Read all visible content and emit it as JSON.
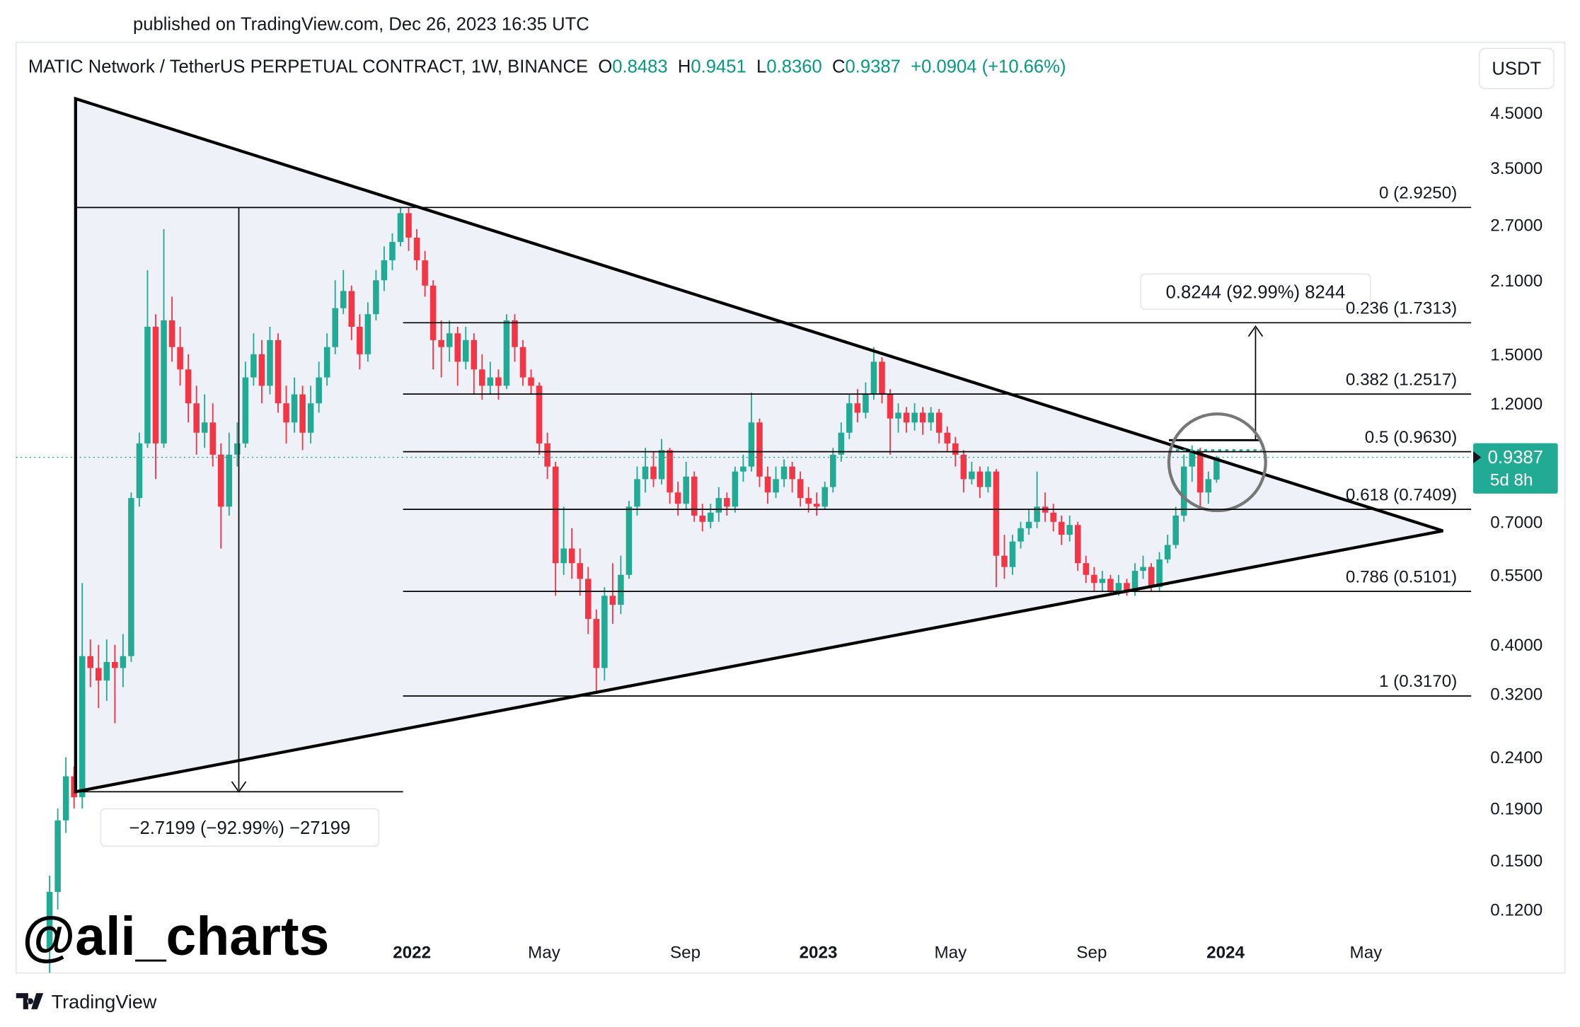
{
  "header": {
    "published": "published on TradingView.com, Dec 26, 2023 16:35 UTC",
    "brand": "TradingView",
    "watermark": "@ali_charts",
    "currency": "USDT"
  },
  "chart_data": {
    "type": "candlestick",
    "title": "MATIC Network / TetherUS PERPETUAL CONTRACT, 1W, BINANCE",
    "ohlc_legend": [
      {
        "key": "O",
        "value": "0.8483"
      },
      {
        "key": "H",
        "value": "0.9451"
      },
      {
        "key": "L",
        "value": "0.8360"
      },
      {
        "key": "C",
        "value": "0.9387"
      }
    ],
    "change": "+0.0904 (+10.66%)",
    "up_color": "#22ab94",
    "down_color": "#f23645",
    "log_scale": true,
    "xlim": [
      -4.1,
      174.2
    ],
    "xticks": [
      {
        "value": 44.4,
        "label": "2022"
      },
      {
        "value": 60.6,
        "label": "May"
      },
      {
        "value": 77.9,
        "label": "Sep"
      },
      {
        "value": 94.2,
        "label": "2023"
      },
      {
        "value": 110.4,
        "label": "May"
      },
      {
        "value": 127.7,
        "label": "Sep"
      },
      {
        "value": 144.1,
        "label": "2024"
      },
      {
        "value": 161.3,
        "label": "May"
      }
    ],
    "ylim": [
      0.0899,
      6.2
    ],
    "yticks": [
      {
        "value": 4.5,
        "label": "4.5000"
      },
      {
        "value": 3.5,
        "label": "3.5000"
      },
      {
        "value": 2.7,
        "label": "2.7000"
      },
      {
        "value": 2.1,
        "label": "2.1000"
      },
      {
        "value": 1.5,
        "label": "1.5000"
      },
      {
        "value": 1.2,
        "label": "1.2000"
      },
      {
        "value": 0.7,
        "label": "0.7000"
      },
      {
        "value": 0.55,
        "label": "0.5500"
      },
      {
        "value": 0.4,
        "label": "0.4000"
      },
      {
        "value": 0.32,
        "label": "0.3200"
      },
      {
        "value": 0.24,
        "label": "0.2400"
      },
      {
        "value": 0.19,
        "label": "0.1900"
      },
      {
        "value": 0.15,
        "label": "0.1500"
      },
      {
        "value": 0.12,
        "label": "0.1200"
      }
    ],
    "open": [
      0.1,
      0.13,
      0.18,
      0.22,
      0.2,
      0.38,
      0.36,
      0.34,
      0.37,
      0.36,
      0.38,
      0.78,
      1.0,
      1.7,
      1.0,
      1.75,
      1.55,
      1.4,
      1.2,
      1.05,
      1.1,
      0.95,
      0.75,
      0.95,
      1.0,
      1.35,
      1.5,
      1.3,
      1.6,
      1.2,
      1.1,
      1.25,
      1.05,
      1.2,
      1.35,
      1.55,
      1.85,
      2.0,
      1.7,
      1.5,
      1.8,
      2.1,
      2.3,
      2.5,
      2.85,
      2.55,
      2.3,
      2.05,
      1.6,
      1.55,
      1.65,
      1.45,
      1.6,
      1.4,
      1.3,
      1.35,
      1.3,
      1.75,
      1.55,
      1.35,
      1.3,
      1.0,
      0.9,
      0.58,
      0.62,
      0.58,
      0.54,
      0.45,
      0.36,
      0.5,
      0.48,
      0.55,
      0.75,
      0.85,
      0.9,
      0.85,
      0.97,
      0.8,
      0.76,
      0.86,
      0.72,
      0.7,
      0.73,
      0.78,
      0.75,
      0.88,
      0.9,
      1.1,
      0.86,
      0.8,
      0.85,
      0.9,
      0.85,
      0.78,
      0.76,
      0.75,
      0.82,
      0.95,
      1.05,
      1.2,
      1.15,
      1.25,
      1.45,
      1.25,
      1.12,
      1.15,
      1.1,
      1.15,
      1.1,
      1.15,
      1.05,
      1.0,
      0.95,
      0.85,
      0.88,
      0.82,
      0.88,
      0.6,
      0.57,
      0.64,
      0.68,
      0.7,
      0.75,
      0.73,
      0.7,
      0.66,
      0.69,
      0.58,
      0.55,
      0.53,
      0.54,
      0.51,
      0.53,
      0.51,
      0.56,
      0.57,
      0.52,
      0.59,
      0.63,
      0.72,
      0.9,
      0.96,
      0.8,
      0.8483
    ],
    "high": [
      0.14,
      0.19,
      0.24,
      0.23,
      0.53,
      0.41,
      0.4,
      0.41,
      0.4,
      0.42,
      0.8,
      1.05,
      2.2,
      1.8,
      2.65,
      1.95,
      1.7,
      1.5,
      1.3,
      1.25,
      1.2,
      1.0,
      1.05,
      1.1,
      1.45,
      1.65,
      1.6,
      1.7,
      1.65,
      1.3,
      1.35,
      1.3,
      1.3,
      1.45,
      1.65,
      2.1,
      2.2,
      2.05,
      1.8,
      1.9,
      2.2,
      2.45,
      2.6,
      2.92,
      2.92,
      2.65,
      2.4,
      2.1,
      1.75,
      1.75,
      1.7,
      1.7,
      1.65,
      1.5,
      1.45,
      1.4,
      1.8,
      1.8,
      1.6,
      1.4,
      1.32,
      1.05,
      0.92,
      0.75,
      0.68,
      0.62,
      0.57,
      0.47,
      0.52,
      0.58,
      0.6,
      0.77,
      0.9,
      0.98,
      0.96,
      1.02,
      0.98,
      0.84,
      0.92,
      0.88,
      0.76,
      0.76,
      0.82,
      0.8,
      0.9,
      0.95,
      1.26,
      1.12,
      0.9,
      0.9,
      0.93,
      0.92,
      0.88,
      0.82,
      0.8,
      0.84,
      0.98,
      1.1,
      1.25,
      1.28,
      1.32,
      1.55,
      1.48,
      1.28,
      1.2,
      1.18,
      1.2,
      1.18,
      1.18,
      1.17,
      1.08,
      1.03,
      0.97,
      0.92,
      0.9,
      0.9,
      0.89,
      0.66,
      0.66,
      0.7,
      0.74,
      0.88,
      0.8,
      0.76,
      0.72,
      0.72,
      0.7,
      0.6,
      0.57,
      0.56,
      0.55,
      0.55,
      0.54,
      0.58,
      0.6,
      0.58,
      0.61,
      0.66,
      0.75,
      0.95,
      0.99,
      0.98,
      0.88,
      0.9451
    ],
    "low": [
      0.09,
      0.12,
      0.17,
      0.19,
      0.19,
      0.33,
      0.3,
      0.31,
      0.28,
      0.33,
      0.37,
      0.75,
      0.98,
      0.85,
      0.98,
      1.45,
      1.3,
      1.1,
      0.95,
      0.98,
      0.9,
      0.62,
      0.72,
      0.9,
      0.98,
      1.3,
      1.2,
      1.25,
      1.15,
      1.0,
      1.05,
      0.97,
      1.0,
      1.15,
      1.3,
      1.5,
      1.8,
      1.6,
      1.4,
      1.45,
      1.75,
      2.0,
      2.2,
      2.45,
      2.4,
      2.2,
      1.95,
      1.4,
      1.35,
      1.45,
      1.3,
      1.4,
      1.25,
      1.22,
      1.25,
      1.22,
      1.28,
      1.45,
      1.3,
      1.25,
      0.95,
      0.85,
      0.5,
      0.55,
      0.54,
      0.5,
      0.42,
      0.32,
      0.34,
      0.44,
      0.46,
      0.54,
      0.72,
      0.8,
      0.82,
      0.83,
      0.76,
      0.72,
      0.74,
      0.7,
      0.67,
      0.68,
      0.7,
      0.72,
      0.73,
      0.84,
      0.88,
      0.82,
      0.76,
      0.78,
      0.82,
      0.8,
      0.75,
      0.73,
      0.72,
      0.74,
      0.8,
      0.92,
      1.02,
      1.1,
      1.12,
      1.22,
      1.2,
      0.95,
      1.05,
      1.05,
      1.06,
      1.04,
      1.06,
      1.0,
      0.96,
      0.9,
      0.8,
      0.83,
      0.78,
      0.8,
      0.52,
      0.54,
      0.55,
      0.62,
      0.66,
      0.68,
      0.7,
      0.67,
      0.63,
      0.64,
      0.56,
      0.53,
      0.51,
      0.51,
      0.5,
      0.5,
      0.5,
      0.5,
      0.54,
      0.51,
      0.51,
      0.58,
      0.62,
      0.7,
      0.84,
      0.75,
      0.76,
      0.836
    ],
    "close": [
      0.13,
      0.18,
      0.22,
      0.2,
      0.38,
      0.36,
      0.34,
      0.37,
      0.36,
      0.38,
      0.78,
      1.0,
      1.7,
      1.0,
      1.75,
      1.55,
      1.4,
      1.2,
      1.05,
      1.1,
      0.95,
      0.75,
      0.95,
      1.0,
      1.35,
      1.5,
      1.3,
      1.6,
      1.2,
      1.1,
      1.25,
      1.05,
      1.2,
      1.35,
      1.55,
      1.85,
      2.0,
      1.7,
      1.5,
      1.8,
      2.1,
      2.3,
      2.5,
      2.85,
      2.55,
      2.3,
      2.05,
      1.6,
      1.55,
      1.65,
      1.45,
      1.6,
      1.4,
      1.3,
      1.35,
      1.3,
      1.75,
      1.55,
      1.35,
      1.3,
      1.0,
      0.9,
      0.58,
      0.62,
      0.58,
      0.54,
      0.45,
      0.36,
      0.5,
      0.48,
      0.55,
      0.75,
      0.85,
      0.9,
      0.85,
      0.97,
      0.8,
      0.76,
      0.86,
      0.72,
      0.7,
      0.73,
      0.78,
      0.75,
      0.88,
      0.9,
      1.1,
      0.86,
      0.8,
      0.85,
      0.9,
      0.85,
      0.78,
      0.76,
      0.75,
      0.82,
      0.95,
      1.05,
      1.2,
      1.15,
      1.25,
      1.45,
      1.25,
      1.12,
      1.15,
      1.1,
      1.15,
      1.1,
      1.15,
      1.05,
      1.0,
      0.95,
      0.85,
      0.88,
      0.82,
      0.88,
      0.6,
      0.57,
      0.64,
      0.68,
      0.7,
      0.75,
      0.73,
      0.7,
      0.66,
      0.69,
      0.58,
      0.55,
      0.53,
      0.54,
      0.51,
      0.53,
      0.51,
      0.56,
      0.57,
      0.52,
      0.59,
      0.63,
      0.72,
      0.9,
      0.96,
      0.8,
      0.85,
      0.9387
    ],
    "last_price": {
      "value": 0.9387,
      "countdown": "5d 8h"
    },
    "fib_levels": [
      {
        "value": 2.925,
        "label": "0 (2.9250)"
      },
      {
        "value": 1.7313,
        "label": "0.236 (1.7313)"
      },
      {
        "value": 1.2517,
        "label": "0.382 (1.2517)"
      },
      {
        "value": 0.963,
        "label": "0.5 (0.9630)"
      },
      {
        "value": 0.7409,
        "label": "0.618 (0.7409)"
      },
      {
        "value": 0.5101,
        "label": "0.786 (0.5101)"
      },
      {
        "value": 0.317,
        "label": "1 (0.3170)"
      }
    ],
    "annotations": [
      "0.8244 (92.99%) 8244",
      "−2.7199 (−92.99%) −27199"
    ]
  }
}
